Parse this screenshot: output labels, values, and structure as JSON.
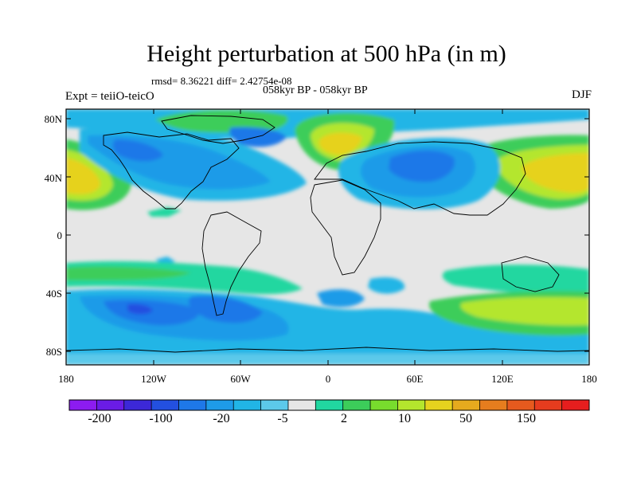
{
  "title": "Height perturbation at 500 hPa (in m)",
  "stats_line": "rmsd= 8.36221 diff= 2.42754e-08",
  "period_line": "058kyr BP - 058kyr BP",
  "experiment_line": "Expt = teiiO-teicO",
  "season": "DJF",
  "lat_ticks": [
    "80N",
    "40N",
    "0",
    "40S",
    "80S"
  ],
  "lon_ticks": [
    "180",
    "120W",
    "60W",
    "0",
    "60E",
    "120E",
    "180"
  ],
  "colorbar": {
    "colors": [
      "#8c1cf0",
      "#6a1ce6",
      "#3c28d8",
      "#2350e0",
      "#1e78e8",
      "#1e9be8",
      "#21b5e6",
      "#5cc9ea",
      "#e6e6e6",
      "#21d7a0",
      "#3ccd5a",
      "#78dc2d",
      "#b4e62d",
      "#e6d21e",
      "#e6aa1e",
      "#e67d1e",
      "#e65a1e",
      "#e63c1e",
      "#e61e1e"
    ],
    "labels": [
      "-200",
      "-100",
      "-20",
      "-5",
      "2",
      "10",
      "50",
      "150"
    ]
  }
}
